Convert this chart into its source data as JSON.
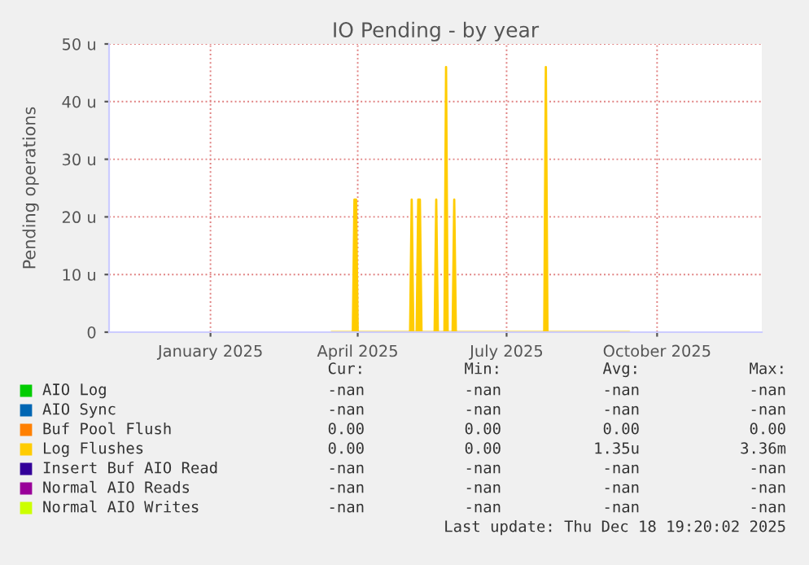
{
  "chart_data": {
    "type": "area",
    "title": "IO Pending - by year",
    "ylabel": "Pending operations",
    "xlim": [
      "2024-11-14",
      "2025-12-18"
    ],
    "xticks": [
      {
        "value": "2025-01-15",
        "label": "January 2025"
      },
      {
        "value": "2025-04-15",
        "label": "April 2025"
      },
      {
        "value": "2025-07-15",
        "label": "July 2025"
      },
      {
        "value": "2025-10-15",
        "label": "October 2025"
      }
    ],
    "ylim": [
      0,
      50
    ],
    "yticks": [
      0,
      {
        "value": 10,
        "label": "10 u"
      },
      {
        "value": 20,
        "label": "20 u"
      },
      {
        "value": 30,
        "label": "30 u"
      },
      {
        "value": 40,
        "label": "40 u"
      },
      {
        "value": 50,
        "label": "50 u"
      }
    ],
    "grid": true,
    "legend": "bottom",
    "series": [
      {
        "name": "AIO Log",
        "color": "#00cc00"
      },
      {
        "name": "AIO Sync",
        "color": "#0066b3"
      },
      {
        "name": "Buf Pool Flush",
        "color": "#ff8000"
      },
      {
        "name": "Log Flushes",
        "color": "#ffcc00",
        "x": [
          "2025-03-30",
          "2025-04-12",
          "2025-04-13",
          "2025-04-14",
          "2025-04-15",
          "2025-05-17",
          "2025-05-18",
          "2025-05-19",
          "2025-05-21",
          "2025-05-22",
          "2025-05-23",
          "2025-05-24",
          "2025-06-01",
          "2025-06-02",
          "2025-06-03",
          "2025-06-07",
          "2025-06-08",
          "2025-06-09",
          "2025-06-12",
          "2025-06-13",
          "2025-06-14",
          "2025-08-07",
          "2025-08-08",
          "2025-08-09",
          "2025-09-28"
        ],
        "values": [
          0,
          0,
          23,
          23,
          0,
          0,
          23,
          0,
          0,
          23,
          23,
          0,
          0,
          23,
          0,
          0,
          46,
          0,
          0,
          23,
          0,
          0,
          46,
          0,
          0
        ]
      },
      {
        "name": "Insert Buf AIO Read",
        "color": "#330099"
      },
      {
        "name": "Normal AIO Reads",
        "color": "#990099"
      },
      {
        "name": "Normal AIO Writes",
        "color": "#ccff00"
      }
    ],
    "annotations": [
      "Cur:",
      "Min:",
      "Avg:",
      "Max:",
      "-nan",
      "-nan",
      "-nan",
      "-nan",
      "-nan",
      "-nan",
      "-nan",
      "-nan",
      "0.00",
      "0.00",
      "0.00",
      "0.00",
      "0.00",
      "0.00",
      "1.35u",
      "3.36m",
      "-nan",
      "-nan",
      "-nan",
      "-nan",
      "-nan",
      "-nan",
      "-nan",
      "-nan",
      "-nan",
      "-nan",
      "-nan",
      "-nan",
      "Last update: Thu Dec 18 19:20:02 2025"
    ]
  }
}
